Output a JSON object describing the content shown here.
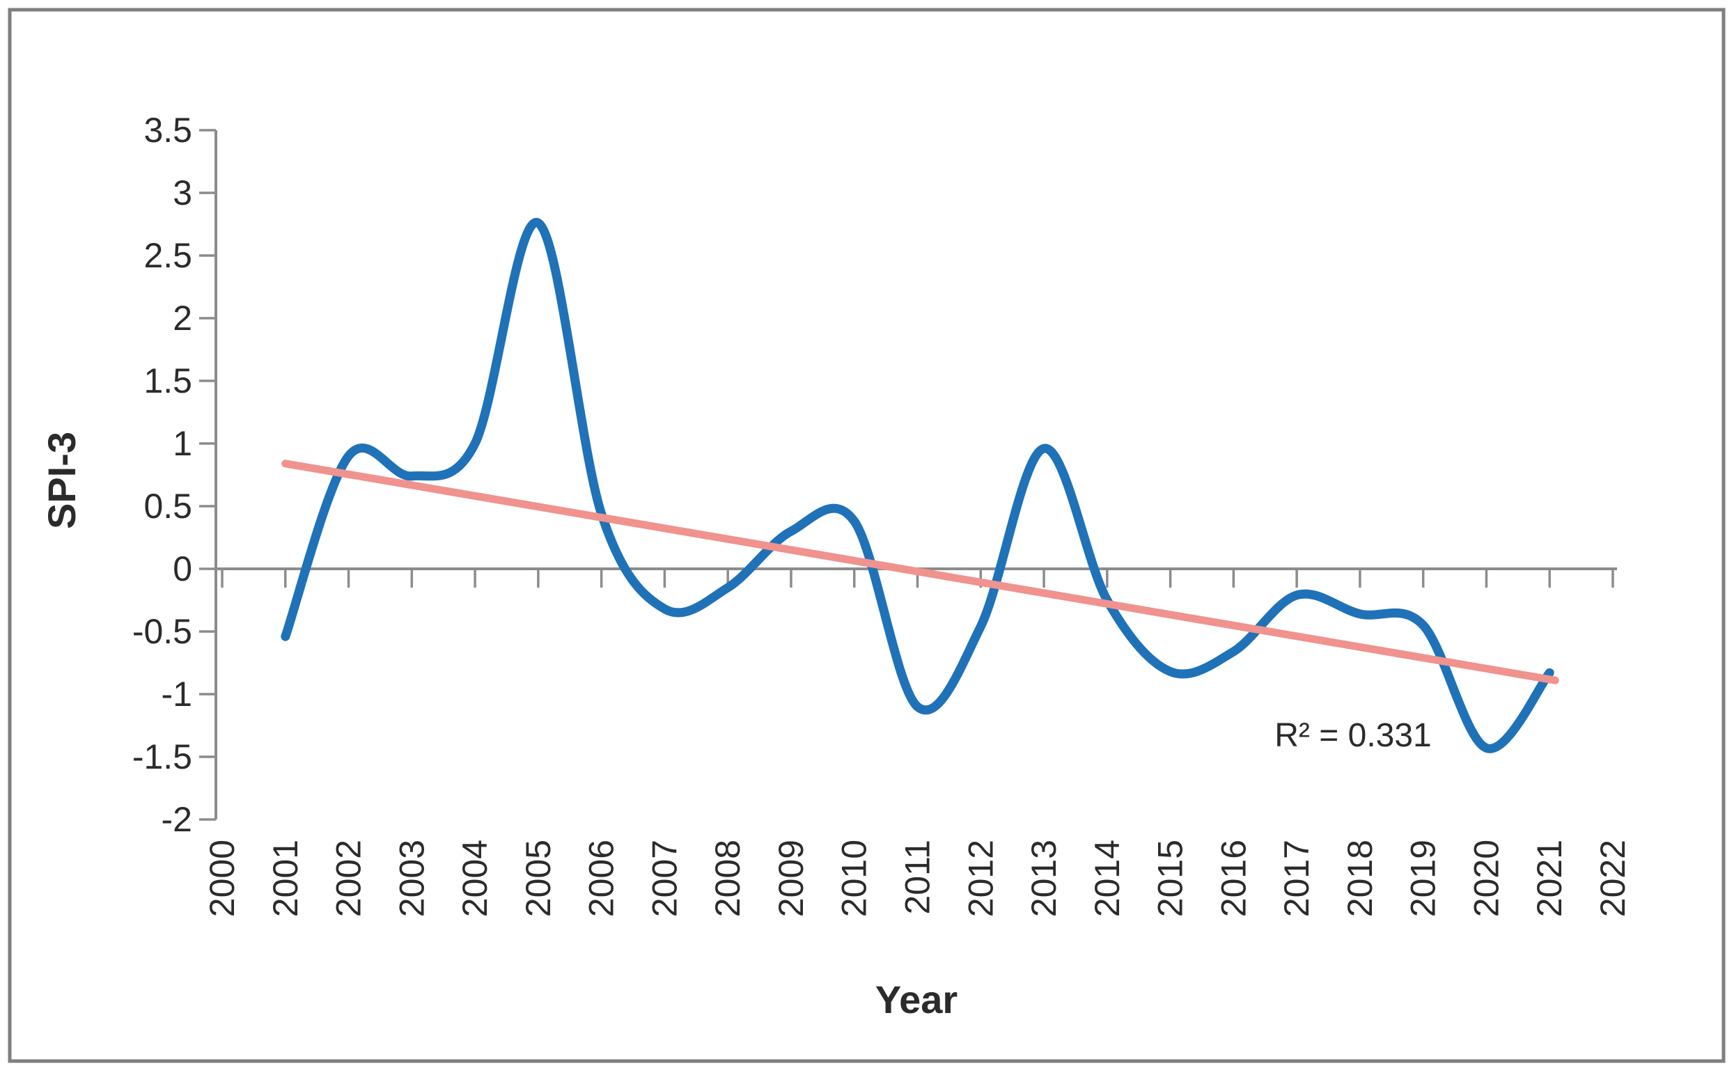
{
  "chart_data": {
    "type": "line",
    "title": "",
    "xlabel": "Year",
    "ylabel": "SPI-3",
    "grid": "zero-line-only",
    "legend": "none",
    "x": [
      2001,
      2002,
      2003,
      2004,
      2005,
      2006,
      2007,
      2008,
      2009,
      2010,
      2011,
      2012,
      2013,
      2014,
      2015,
      2016,
      2017,
      2018,
      2019,
      2020,
      2021
    ],
    "series": [
      {
        "name": "SPI-3 smoothed line",
        "values": [
          -0.54,
          0.9,
          0.74,
          1.0,
          2.76,
          0.44,
          -0.32,
          -0.15,
          0.3,
          0.38,
          -1.1,
          -0.46,
          0.96,
          -0.25,
          -0.82,
          -0.66,
          -0.21,
          -0.36,
          -0.45,
          -1.43,
          -0.83
        ],
        "color": "#1F72B8",
        "smooth": true,
        "stroke_width": 13
      }
    ],
    "trendline": {
      "type": "linear",
      "x_start": 2001,
      "y_start": 0.84,
      "x_end": 2021,
      "y_end": -0.89,
      "color": "#F0928D",
      "stroke_width": 11,
      "r2_label": "R² = 0.331"
    },
    "y_axis": {
      "min": -2,
      "max": 3.5,
      "step": 0.5,
      "tick_labels": [
        "3.5",
        "3",
        "2.5",
        "2",
        "1.5",
        "1",
        "0.5",
        "0",
        "-0.5",
        "-1",
        "-1.5",
        "-2"
      ]
    },
    "x_axis": {
      "labels": [
        "2000",
        "2001",
        "2002",
        "2003",
        "2004",
        "2005",
        "2006",
        "2007",
        "2008",
        "2009",
        "2010",
        "2011",
        "2012",
        "2013",
        "2014",
        "2015",
        "2016",
        "2017",
        "2018",
        "2019",
        "2020",
        "2021",
        "2022"
      ]
    },
    "annotation": {
      "text": "R² = 0.331"
    }
  },
  "colors": {
    "curve": "#1F72B8",
    "trend": "#F0928D",
    "axis": "#8C8C8C",
    "label": "#2b2b2b",
    "frame_border": "#7F7F7F",
    "background": "#ffffff"
  }
}
